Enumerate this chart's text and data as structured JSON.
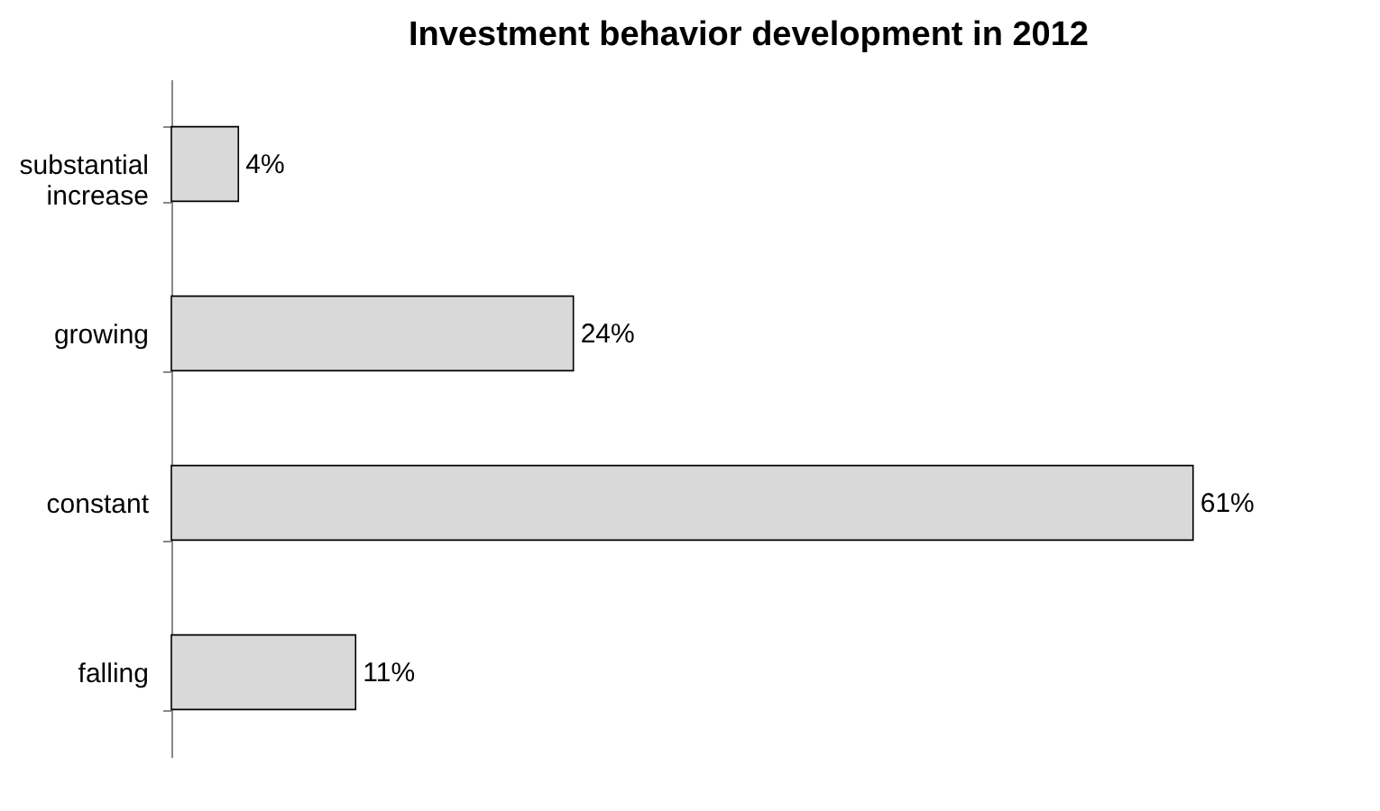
{
  "chart_data": {
    "type": "bar",
    "orientation": "horizontal",
    "title": "Investment behavior development in 2012",
    "categories": [
      "substantial increase",
      "growing",
      "constant",
      "falling"
    ],
    "values": [
      4,
      24,
      61,
      11
    ],
    "value_labels": [
      "4%",
      "24%",
      "61%",
      "11%"
    ],
    "color": "#d9d9d9"
  }
}
